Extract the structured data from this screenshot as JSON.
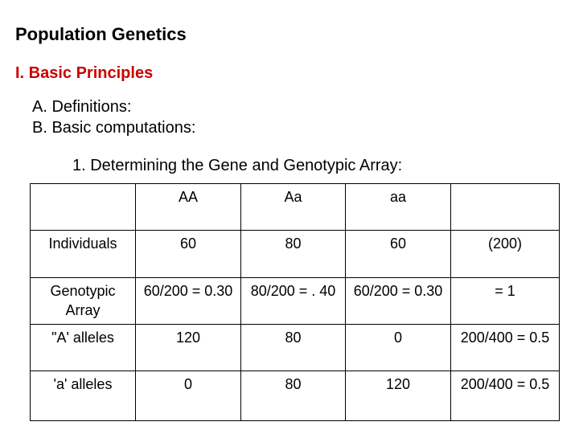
{
  "title": "Population Genetics",
  "section": "I. Basic Principles",
  "subsections": {
    "a": "A. Definitions:",
    "b": "B. Basic computations:"
  },
  "subheading": "1. Determining the Gene and Genotypic Array:",
  "table": {
    "header": [
      "",
      "AA",
      "Aa",
      "aa",
      ""
    ],
    "rows": [
      {
        "label": "Individuals",
        "cells": [
          "60",
          "80",
          "60",
          "(200)"
        ]
      },
      {
        "label": "Genotypic Array",
        "cells": [
          "60/200 = 0.30",
          "80/200 = . 40",
          "60/200 = 0.30",
          "= 1"
        ]
      },
      {
        "label": "\"A' alleles",
        "cells": [
          "120",
          "80",
          "0",
          "200/400 = 0.5"
        ]
      },
      {
        "label": "'a' alleles",
        "cells": [
          "0",
          "80",
          "120",
          "200/400 = 0.5"
        ]
      }
    ]
  },
  "colors": {
    "section_heading": "#cc0000",
    "text": "#000000",
    "background": "#ffffff"
  }
}
